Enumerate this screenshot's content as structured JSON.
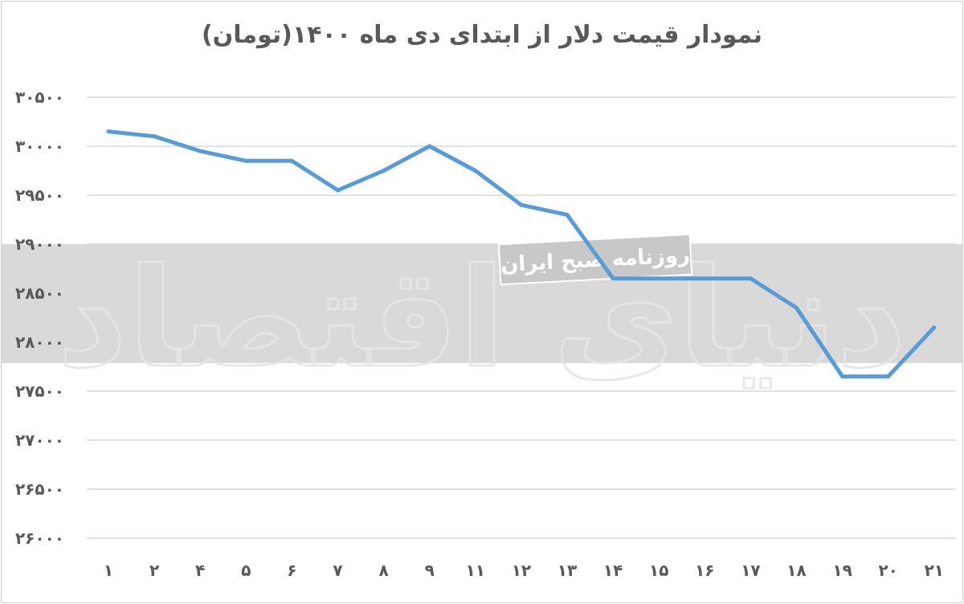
{
  "chart_data": {
    "type": "line",
    "title": "نمودار قیمت دلار از ابتدای دی ماه ۱۴۰۰(تومان)",
    "xlabel": "",
    "ylabel": "",
    "categories": [
      "۱",
      "۲",
      "۴",
      "۵",
      "۶",
      "۷",
      "۸",
      "۹",
      "۱۱",
      "۱۲",
      "۱۳",
      "۱۴",
      "۱۵",
      "۱۶",
      "۱۷",
      "۱۸",
      "۱۹",
      "۲۰",
      "۲۱"
    ],
    "series": [
      {
        "color": "#5b9bd5",
        "values": [
          30150,
          30100,
          29950,
          29850,
          29850,
          29550,
          29750,
          30000,
          29750,
          29400,
          29300,
          28650,
          28650,
          28650,
          28650,
          28350,
          27650,
          27650,
          28150
        ]
      }
    ],
    "ylim": [
      26000,
      30500
    ],
    "yticks": [
      26000,
      26500,
      27000,
      27500,
      28000,
      28500,
      29000,
      29500,
      30000,
      30500
    ],
    "ytick_labels": [
      "۲۶۰۰۰",
      "۲۶۵۰۰",
      "۲۷۰۰۰",
      "۲۷۵۰۰",
      "۲۸۰۰۰",
      "۲۸۵۰۰",
      "۲۹۰۰۰",
      "۲۹۵۰۰",
      "۳۰۰۰۰",
      "۳۰۵۰۰"
    ],
    "grid": true,
    "legend": "none"
  },
  "watermark": {
    "logo_text": "دنیای اقتصاد",
    "badge_text": "روزنامه صبح ایران",
    "band_color": "#d9d9d9"
  }
}
